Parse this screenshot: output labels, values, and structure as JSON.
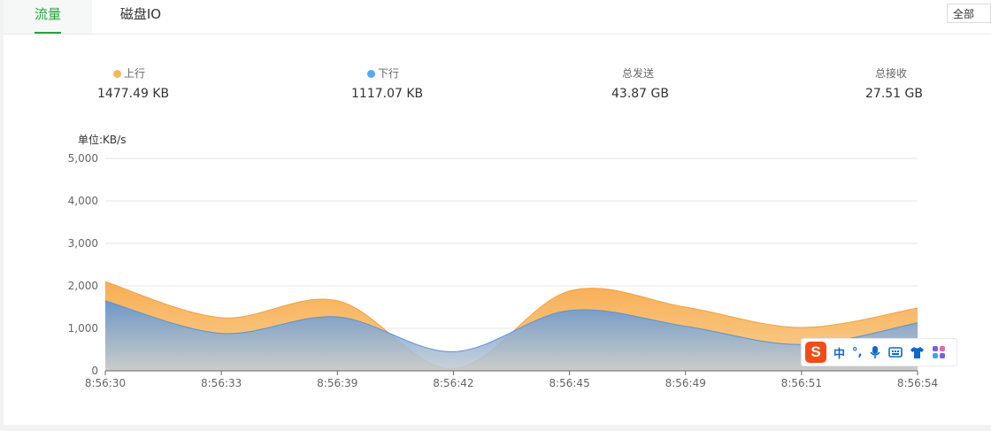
{
  "tabs": [
    {
      "label": "流量",
      "active": true
    },
    {
      "label": "磁盘IO",
      "active": false
    }
  ],
  "scope_select": {
    "value": "全部"
  },
  "stats": [
    {
      "label": "上行",
      "value": "1477.49 KB",
      "dot_color": "#f7b851"
    },
    {
      "label": "下行",
      "value": "1117.07 KB",
      "dot_color": "#52a9ff"
    },
    {
      "label": "总发送",
      "value": "43.87 GB"
    },
    {
      "label": "总接收",
      "value": "27.51 GB"
    }
  ],
  "colors": {
    "accent": "#20a53a",
    "upload": "#f7b851",
    "download": "#6c9bd0",
    "grid": "#e6e6e6"
  },
  "ime": {
    "lang": "中",
    "punct": "°,",
    "icons": [
      "mic-icon",
      "keyboard-icon",
      "shirt-icon",
      "apps-icon"
    ]
  },
  "chart_data": {
    "type": "area",
    "stacked": true,
    "unit_label": "单位:KB/s",
    "categories": [
      "8:56:30",
      "8:56:33",
      "8:56:39",
      "8:56:42",
      "8:56:45",
      "8:56:49",
      "8:56:51",
      "8:56:54"
    ],
    "series": [
      {
        "name": "上行",
        "color": "#f7b851",
        "values": [
          2100,
          1250,
          1650,
          50,
          1880,
          1500,
          1020,
          1480
        ]
      },
      {
        "name": "下行",
        "color": "#6c9bd0",
        "values": [
          1650,
          880,
          1270,
          450,
          1420,
          1050,
          620,
          1130
        ]
      }
    ],
    "ylim": [
      0,
      5000
    ],
    "yticks": [
      "0",
      "1,000",
      "2,000",
      "3,000",
      "4,000",
      "5,000"
    ],
    "grid": true
  }
}
